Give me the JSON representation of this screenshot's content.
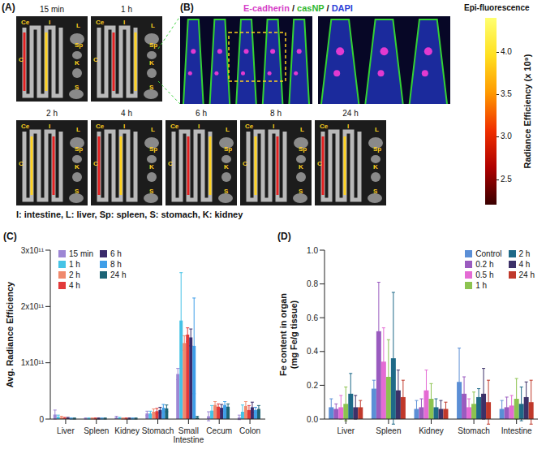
{
  "panel_a": {
    "letter": "(A)",
    "time_points": [
      "15 min",
      "1 h",
      "2 h",
      "4 h",
      "6 h",
      "8 h",
      "24 h"
    ],
    "organ_labels": [
      "Ce",
      "I",
      "L",
      "Sp",
      "K",
      "S",
      "C"
    ],
    "organ_key": "I: intestine, L: liver, Sp: spleen, S: stomach, K: kidney"
  },
  "panel_b": {
    "letter": "(B)",
    "separator": "/",
    "stains": [
      {
        "name": "E-cadherin",
        "color": "#d63fc8"
      },
      {
        "name": "casNP",
        "color": "#2fb82f"
      },
      {
        "name": "DAPI",
        "color": "#2a3fd8"
      }
    ]
  },
  "colorbar": {
    "title": "Epi-fluorescence",
    "label": "Radiance Efficiency (x 10⁹)",
    "range": [
      2.2,
      4.4
    ],
    "ticks": [
      2.5,
      {
        "value": 3,
        "label": "3.0"
      },
      3.5,
      {
        "value": 4,
        "label": "4.0"
      }
    ]
  },
  "chart_data": [
    {
      "letter": "(C)",
      "type": "bar",
      "ylabel": "Avg. Radiance Efficiency",
      "categories": [
        "Liver",
        "Spleen",
        "Kidney",
        "Stomach",
        "Small Intestine",
        "Cecum",
        "Colon"
      ],
      "ylim": [
        0,
        300000000000.0
      ],
      "yticks": [
        0,
        {
          "value": 100000000000.0,
          "label": "1x10¹¹"
        },
        {
          "value": 200000000000.0,
          "label": "2x10¹¹"
        },
        {
          "value": 300000000000.0,
          "label": "3x10¹¹"
        }
      ],
      "grid": false,
      "legend": "upper left",
      "series": [
        {
          "name": "15 min",
          "color": "#9d86d4",
          "values": [
            8000000000.0,
            1000000000.0,
            3000000000.0,
            10000000000.0,
            80000000000.0,
            5000000000.0,
            3000000000.0
          ],
          "errors": [
            8000000000.0,
            1000000000.0,
            2000000000.0,
            4000000000.0,
            10000000000.0,
            8000000000.0,
            4000000000.0
          ]
        },
        {
          "name": "1 h",
          "color": "#45c3e6",
          "values": [
            4000000000.0,
            1000000000.0,
            2000000000.0,
            10000000000.0,
            175000000000.0,
            15000000000.0,
            13000000000.0
          ],
          "errors": [
            3000000000.0,
            1000000000.0,
            1000000000.0,
            4000000000.0,
            85000000000.0,
            9000000000.0,
            12000000000.0
          ]
        },
        {
          "name": "2 h",
          "color": "#f0896c",
          "values": [
            3000000000.0,
            1000000000.0,
            1000000000.0,
            13000000000.0,
            135000000000.0,
            25000000000.0,
            23000000000.0
          ],
          "errors": [
            2000000000.0,
            1000000000.0,
            1000000000.0,
            5000000000.0,
            13000000000.0,
            6000000000.0,
            8000000000.0
          ]
        },
        {
          "name": "4 h",
          "color": "#e23a3a",
          "values": [
            2000000000.0,
            1000000000.0,
            1000000000.0,
            14000000000.0,
            150000000000.0,
            22000000000.0,
            16000000000.0
          ],
          "errors": [
            1000000000.0,
            1000000000.0,
            1000000000.0,
            5000000000.0,
            12000000000.0,
            5000000000.0,
            8000000000.0
          ]
        },
        {
          "name": "6 h",
          "color": "#3b2b6b",
          "values": [
            2000000000.0,
            1000000000.0,
            1000000000.0,
            16000000000.0,
            145000000000.0,
            20000000000.0,
            21000000000.0
          ],
          "errors": [
            1000000000.0,
            1000000000.0,
            1000000000.0,
            5000000000.0,
            15000000000.0,
            6000000000.0,
            9000000000.0
          ]
        },
        {
          "name": "8 h",
          "color": "#3f9ee8",
          "values": [
            1000000000.0,
            1000000000.0,
            1000000000.0,
            20000000000.0,
            130000000000.0,
            25000000000.0,
            16000000000.0
          ],
          "errors": [
            1000000000.0,
            1000000000.0,
            1000000000.0,
            6000000000.0,
            85000000000.0,
            6000000000.0,
            5000000000.0
          ]
        },
        {
          "name": "24 h",
          "color": "#1c6476",
          "values": [
            1000000000.0,
            1000000000.0,
            1000000000.0,
            19000000000.0,
            3000000000.0,
            22000000000.0,
            18000000000.0
          ],
          "errors": [
            1000000000.0,
            1000000000.0,
            1000000000.0,
            6000000000.0,
            2000000000.0,
            5000000000.0,
            6000000000.0
          ]
        }
      ]
    },
    {
      "letter": "(D)",
      "type": "bar",
      "ylabel": [
        "Fe content in organ",
        "(mg Fe/g tissue)"
      ],
      "categories": [
        "Liver",
        "Spleen",
        "Kidney",
        "Stomach",
        "Intestine"
      ],
      "ylim": [
        0,
        1
      ],
      "yticks": [
        {
          "value": 0,
          "label": "0.0"
        },
        0.2,
        0.4,
        0.6,
        0.8,
        {
          "value": 1,
          "label": "1.0"
        }
      ],
      "grid": false,
      "legend": "upper right",
      "series": [
        {
          "name": "Control",
          "color": "#5b8fd6",
          "values": [
            0.07,
            0.18,
            0.06,
            0.22,
            0.06
          ],
          "errors": [
            0.05,
            0.05,
            0.05,
            0.2,
            0.05
          ]
        },
        {
          "name": "0.2 h",
          "color": "#9a5bbf",
          "values": [
            0.06,
            0.52,
            0.07,
            0.15,
            0.07
          ],
          "errors": [
            0.03,
            0.29,
            0.05,
            0.1,
            0.06
          ]
        },
        {
          "name": "0.5 h",
          "color": "#e46bd4",
          "values": [
            0.07,
            0.34,
            0.17,
            0.07,
            0.08
          ],
          "errors": [
            0.07,
            0.2,
            0.12,
            0.05,
            0.06
          ]
        },
        {
          "name": "1 h",
          "color": "#8cc350",
          "values": [
            0.09,
            0.25,
            0.12,
            0.09,
            0.12
          ],
          "errors": [
            0.1,
            0.22,
            0.09,
            0.07,
            0.12
          ]
        },
        {
          "name": "2 h",
          "color": "#1f6a88",
          "values": [
            0.15,
            0.36,
            0.07,
            0.13,
            0.09
          ],
          "errors": [
            0.12,
            0.39,
            0.05,
            0.05,
            0.1
          ]
        },
        {
          "name": "4 h",
          "color": "#3d3168",
          "values": [
            0.07,
            0.17,
            0.06,
            0.15,
            0.13
          ],
          "errors": [
            0.07,
            0.12,
            0.05,
            0.15,
            0.09
          ]
        },
        {
          "name": "24 h",
          "color": "#c0392b",
          "values": [
            0.07,
            0.13,
            0.06,
            0.1,
            0.1
          ],
          "errors": [
            0.04,
            0.1,
            0.04,
            0.13,
            0.13
          ]
        }
      ]
    }
  ]
}
